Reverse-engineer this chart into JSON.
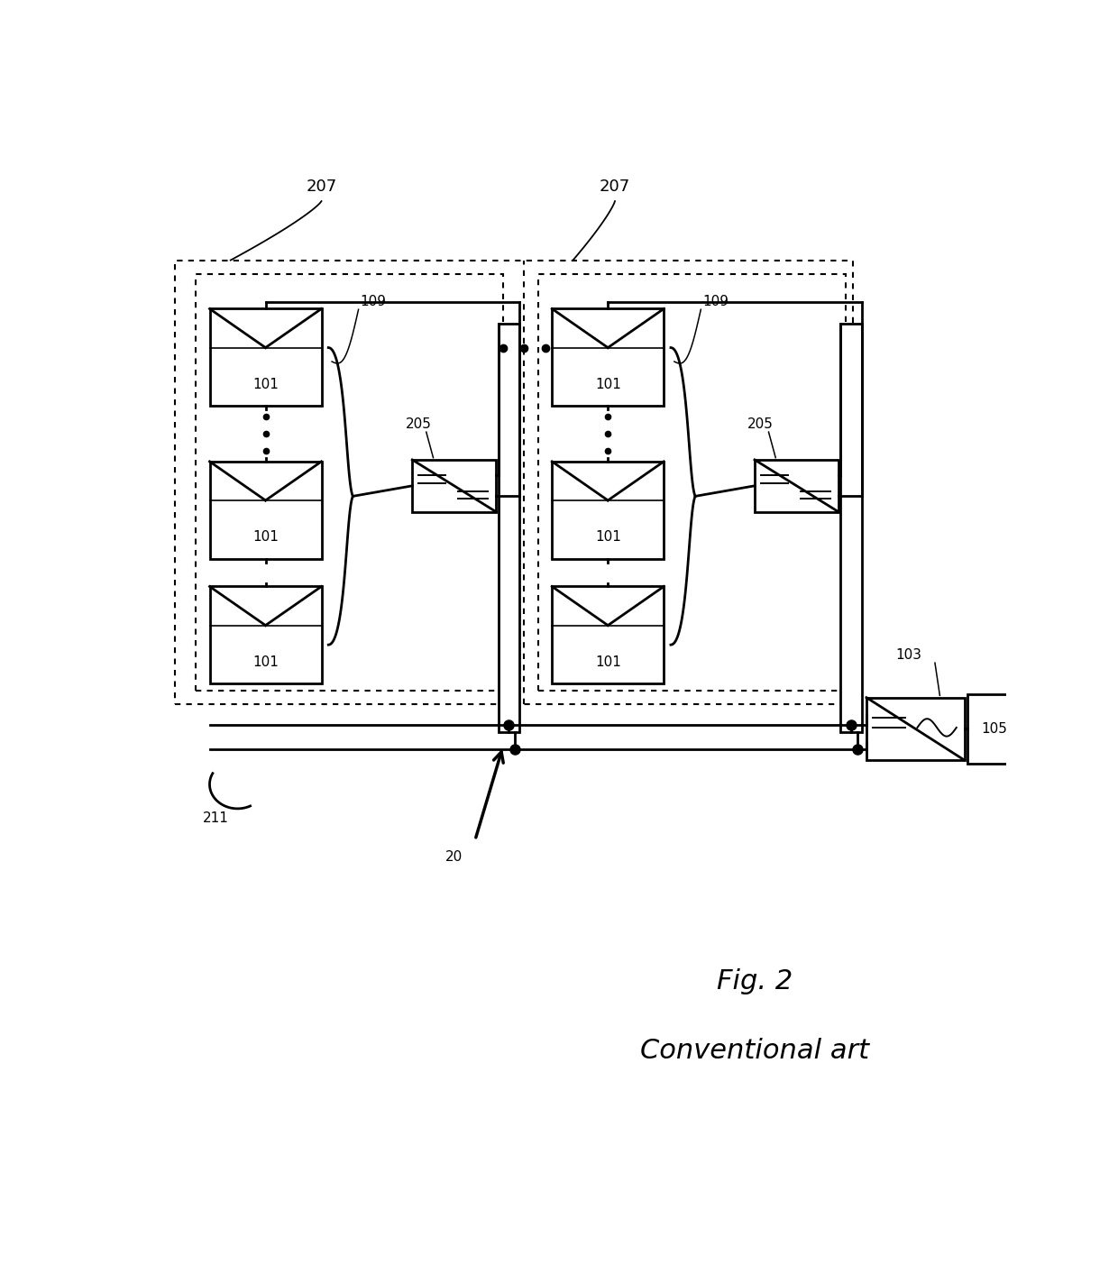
{
  "fig_width": 12.4,
  "fig_height": 14.23,
  "bg_color": "#ffffff",
  "title_line1": "Fig. 2",
  "title_line2": "Conventional art",
  "label_207": "207",
  "label_101": "101",
  "label_109": "109",
  "label_205": "205",
  "label_103": "103",
  "label_105": "105",
  "label_211": "211",
  "label_20": "20",
  "lw_main": 2.0,
  "lw_thin": 1.5,
  "font_size_label": 11,
  "font_size_ref": 13,
  "font_size_title": 22
}
